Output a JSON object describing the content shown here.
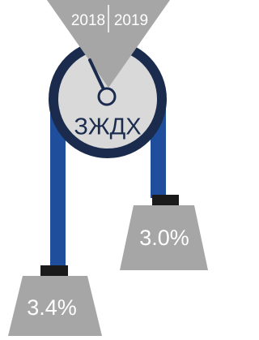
{
  "dial": {
    "left_label": "2018",
    "right_label": "2019"
  },
  "pulley": {
    "label": "ЗЖДХ"
  },
  "weights": [
    {
      "label": "3.4%"
    },
    {
      "label": "3.0%"
    }
  ]
}
